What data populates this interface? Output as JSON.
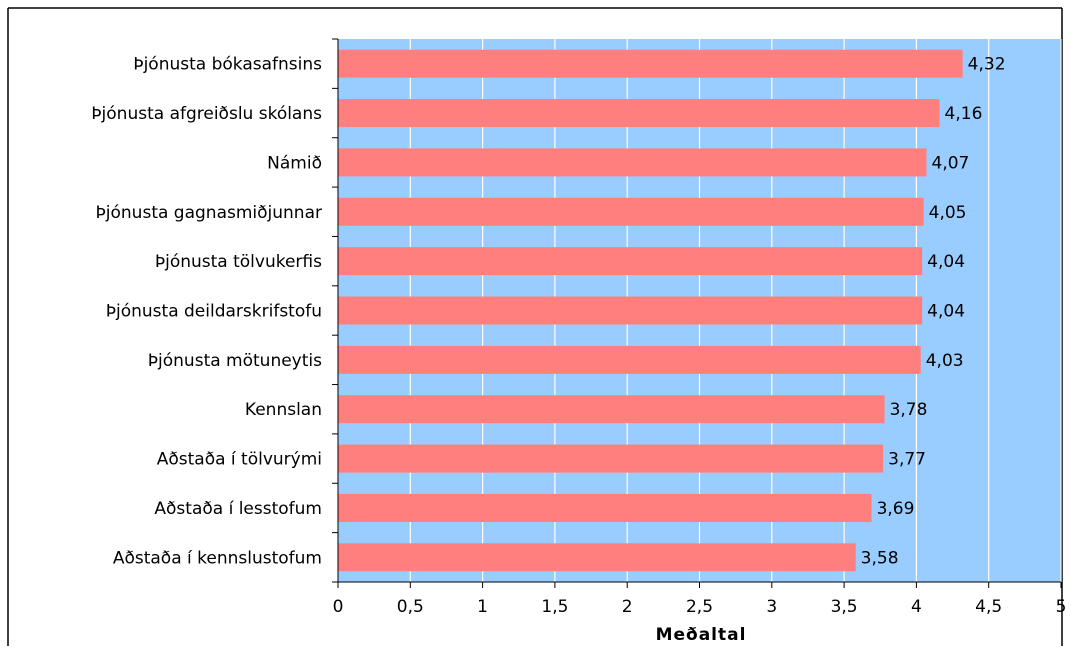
{
  "chart_data": {
    "type": "bar",
    "orientation": "horizontal",
    "categories": [
      "Þjónusta bókasafnsins",
      "Þjónusta afgreiðslu skólans",
      "Námið",
      "Þjónusta gagnasmiðjunnar",
      "Þjónusta tölvukerfis",
      "Þjónusta deildarskrifstofu",
      "Þjónusta mötuneytis",
      "Kennslan",
      "Aðstaða í tölvurými",
      "Aðstaða í lesstofum",
      "Aðstaða í kennslustofum"
    ],
    "values": [
      4.32,
      4.16,
      4.07,
      4.05,
      4.04,
      4.04,
      4.03,
      3.78,
      3.77,
      3.69,
      3.58
    ],
    "value_labels": [
      "4,32",
      "4,16",
      "4,07",
      "4,05",
      "4,04",
      "4,04",
      "4,03",
      "3,78",
      "3,77",
      "3,69",
      "3,58"
    ],
    "xlabel": "Meðaltal",
    "xlim": [
      0,
      5
    ],
    "x_ticks": [
      0,
      0.5,
      1,
      1.5,
      2,
      2.5,
      3,
      3.5,
      4,
      4.5,
      5
    ],
    "x_tick_labels": [
      "0",
      "0,5",
      "1",
      "1,5",
      "2",
      "2,5",
      "3",
      "3,5",
      "4",
      "4,5",
      "5"
    ],
    "grid": "vertical",
    "legend": "none",
    "colors": {
      "bar": "#ff7f7f",
      "plot_background": "#99ccff",
      "gridline": "#ffffff",
      "axis": "#000000",
      "frame": "#000000"
    }
  }
}
